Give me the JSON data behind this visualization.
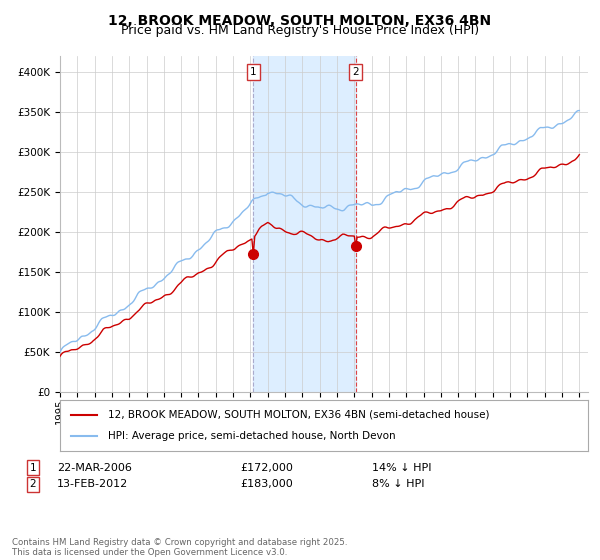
{
  "title": "12, BROOK MEADOW, SOUTH MOLTON, EX36 4BN",
  "subtitle": "Price paid vs. HM Land Registry's House Price Index (HPI)",
  "legend_line1": "12, BROOK MEADOW, SOUTH MOLTON, EX36 4BN (semi-detached house)",
  "legend_line2": "HPI: Average price, semi-detached house, North Devon",
  "footnote": "Contains HM Land Registry data © Crown copyright and database right 2025.\nThis data is licensed under the Open Government Licence v3.0.",
  "transaction1_date": "22-MAR-2006",
  "transaction1_price": "£172,000",
  "transaction1_hpi": "14% ↓ HPI",
  "transaction2_date": "13-FEB-2012",
  "transaction2_price": "£183,000",
  "transaction2_hpi": "8% ↓ HPI",
  "hpi_color": "#88BBEE",
  "paid_color": "#CC0000",
  "marker_color": "#CC0000",
  "shade_color": "#DDEEFF",
  "vline1_color": "#AAAACC",
  "vline2_color": "#DD4444",
  "background_color": "#FFFFFF",
  "grid_color": "#CCCCCC",
  "ylim": [
    0,
    420000
  ],
  "title_fontsize": 10,
  "subtitle_fontsize": 9
}
